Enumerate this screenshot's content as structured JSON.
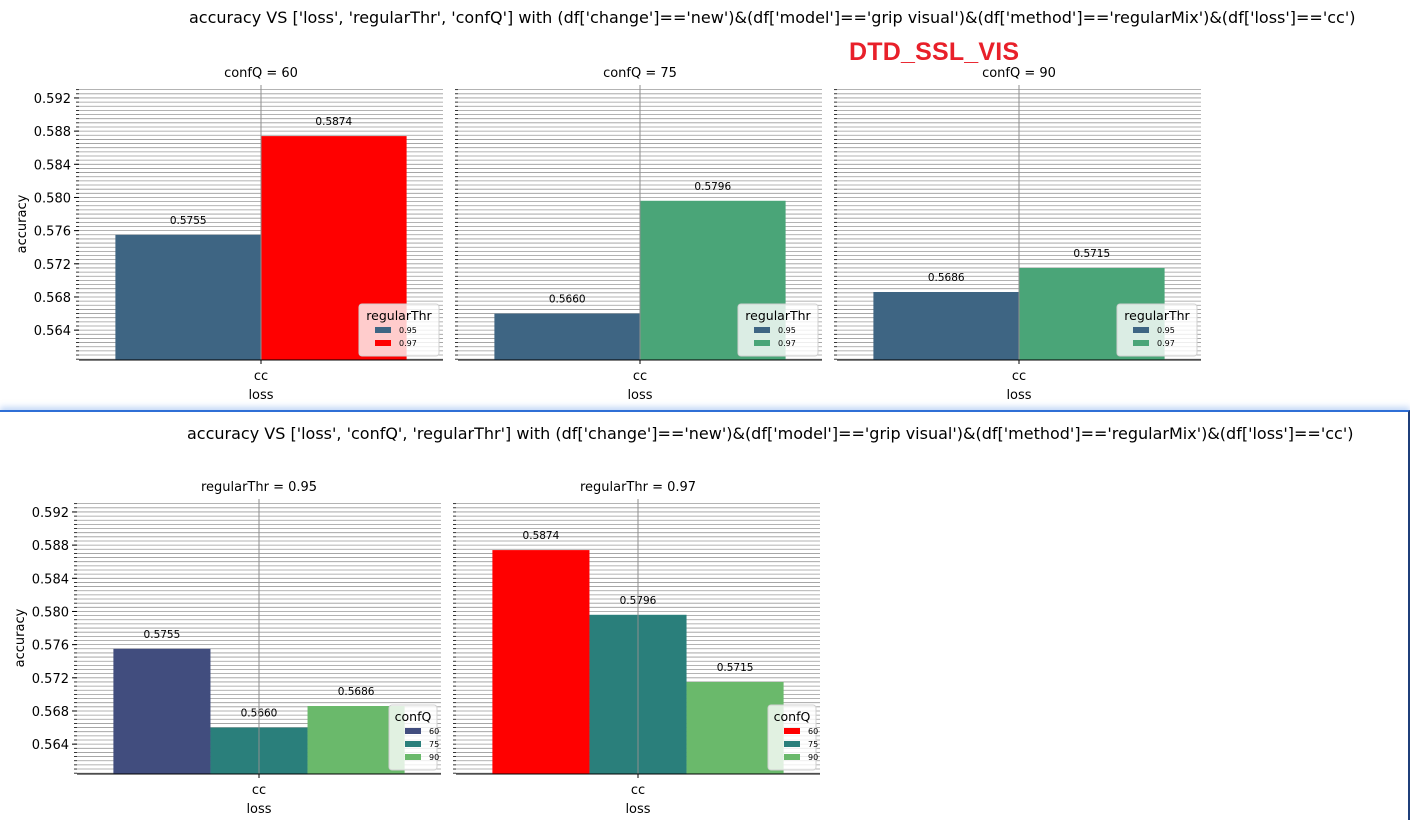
{
  "watermark": "DTD_SSL_VIS",
  "figures": [
    {
      "suptitle": "accuracy VS ['loss', 'regularThr', 'confQ'] with (df['change']=='new')&(df['model']=='grip visual')&(df['method']=='regularMix')&(df['loss']=='cc')"
    },
    {
      "suptitle": "accuracy VS ['loss', 'confQ', 'regularThr'] with (df['change']=='new')&(df['model']=='grip visual')&(df['method']=='regularMix')&(df['loss']=='cc')"
    }
  ],
  "chart_data": [
    {
      "type": "bar",
      "title": "confQ = 60",
      "xlabel": "loss",
      "ylabel": "accuracy",
      "categories": [
        "cc"
      ],
      "ylim": [
        0.5604,
        0.5932
      ],
      "yticks": [
        "0.564",
        "0.568",
        "0.572",
        "0.576",
        "0.580",
        "0.584",
        "0.588",
        "0.592"
      ],
      "grid": true,
      "legend": {
        "title": "regularThr",
        "position": "lower right",
        "entries": [
          "0.95",
          "0.97"
        ]
      },
      "series": [
        {
          "name": "0.95",
          "values": [
            0.5755
          ],
          "label": "0.5755",
          "color": "#3e6583"
        },
        {
          "name": "0.97",
          "values": [
            0.5874
          ],
          "label": "0.5874",
          "color": "#ff0000"
        }
      ]
    },
    {
      "type": "bar",
      "title": "confQ = 75",
      "xlabel": "loss",
      "ylabel": "",
      "categories": [
        "cc"
      ],
      "ylim": [
        0.5604,
        0.5932
      ],
      "yticks": [],
      "grid": true,
      "legend": {
        "title": "regularThr",
        "position": "lower right",
        "entries": [
          "0.95",
          "0.97"
        ]
      },
      "series": [
        {
          "name": "0.95",
          "values": [
            0.566
          ],
          "label": "0.5660",
          "color": "#3e6583"
        },
        {
          "name": "0.97",
          "values": [
            0.5796
          ],
          "label": "0.5796",
          "color": "#4aa578"
        }
      ]
    },
    {
      "type": "bar",
      "title": "confQ = 90",
      "xlabel": "loss",
      "ylabel": "",
      "categories": [
        "cc"
      ],
      "ylim": [
        0.5604,
        0.5932
      ],
      "yticks": [],
      "grid": true,
      "legend": {
        "title": "regularThr",
        "position": "lower right",
        "entries": [
          "0.95",
          "0.97"
        ]
      },
      "series": [
        {
          "name": "0.95",
          "values": [
            0.5686
          ],
          "label": "0.5686",
          "color": "#3e6583"
        },
        {
          "name": "0.97",
          "values": [
            0.5715
          ],
          "label": "0.5715",
          "color": "#4aa578"
        }
      ]
    },
    {
      "type": "bar",
      "title": "regularThr = 0.95",
      "xlabel": "loss",
      "ylabel": "accuracy",
      "categories": [
        "cc"
      ],
      "ylim": [
        0.5604,
        0.5932
      ],
      "yticks": [
        "0.564",
        "0.568",
        "0.572",
        "0.576",
        "0.580",
        "0.584",
        "0.588",
        "0.592"
      ],
      "grid": true,
      "legend": {
        "title": "confQ",
        "position": "lower right",
        "entries": [
          "60",
          "75",
          "90"
        ]
      },
      "series": [
        {
          "name": "60",
          "values": [
            0.5755
          ],
          "label": "0.5755",
          "color": "#414d7e"
        },
        {
          "name": "75",
          "values": [
            0.566
          ],
          "label": "0.5660",
          "color": "#2a7f7b"
        },
        {
          "name": "90",
          "values": [
            0.5686
          ],
          "label": "0.5686",
          "color": "#6ab96b"
        }
      ]
    },
    {
      "type": "bar",
      "title": "regularThr = 0.97",
      "xlabel": "loss",
      "ylabel": "",
      "categories": [
        "cc"
      ],
      "ylim": [
        0.5604,
        0.5932
      ],
      "yticks": [],
      "grid": true,
      "legend": {
        "title": "confQ",
        "position": "lower right",
        "entries": [
          "60",
          "75",
          "90"
        ]
      },
      "series": [
        {
          "name": "60",
          "values": [
            0.5874
          ],
          "label": "0.5874",
          "color": "#ff0000"
        },
        {
          "name": "75",
          "values": [
            0.5796
          ],
          "label": "0.5796",
          "color": "#2a7f7b"
        },
        {
          "name": "90",
          "values": [
            0.5715
          ],
          "label": "0.5715",
          "color": "#6ab96b"
        }
      ]
    }
  ]
}
